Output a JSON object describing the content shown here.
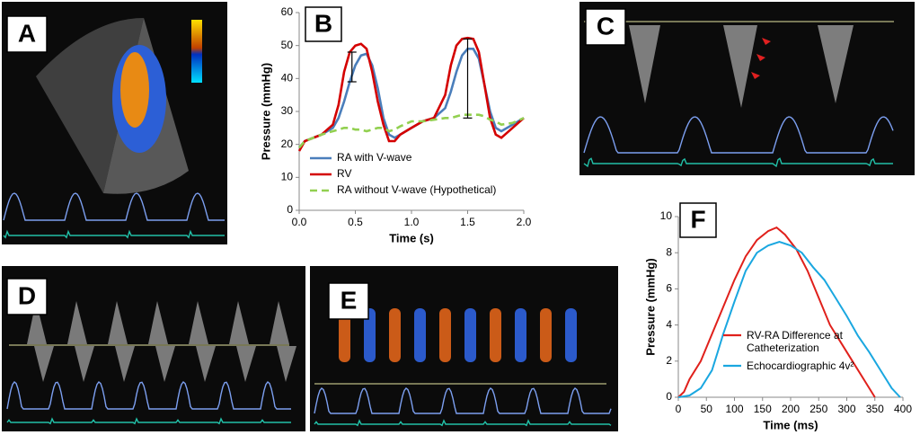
{
  "panel_labels": [
    "A",
    "C",
    "D",
    "E"
  ],
  "chart_data": [
    {
      "type": "line",
      "label": "B",
      "xlabel": "Time (s)",
      "ylabel": "Pressure (mmHg)",
      "x": [
        0,
        0.05,
        0.2,
        0.3,
        0.35,
        0.4,
        0.45,
        0.5,
        0.55,
        0.6,
        0.65,
        0.7,
        0.75,
        0.8,
        0.85,
        0.9,
        1.0,
        1.1,
        1.2,
        1.3,
        1.35,
        1.4,
        1.45,
        1.5,
        1.55,
        1.6,
        1.65,
        1.7,
        1.75,
        1.8,
        1.9,
        2.0
      ],
      "series": [
        {
          "name": "RA with V-wave",
          "color": "#4a7ebb",
          "values": [
            19,
            21,
            23,
            25,
            28,
            33,
            39,
            44,
            47,
            47.5,
            44,
            37,
            28,
            23,
            22,
            23,
            25,
            27,
            28,
            31,
            36,
            42,
            47,
            49,
            49,
            46,
            38,
            30,
            25,
            24,
            26,
            28
          ]
        },
        {
          "name": "RV",
          "color": "#d40000",
          "values": [
            18,
            21,
            23,
            26,
            32,
            42,
            48,
            50,
            50.5,
            49,
            42,
            33,
            26,
            21,
            21,
            23,
            25,
            27,
            28,
            35,
            44,
            50,
            52,
            52.3,
            52,
            48,
            38,
            28,
            23,
            22,
            25,
            28
          ]
        },
        {
          "name": "RA without V-wave (Hypothetical)",
          "color": "#92d050",
          "dashed": true,
          "values": [
            19,
            21,
            23,
            24,
            24.5,
            25,
            25,
            24.5,
            24.5,
            24,
            24.5,
            25,
            25,
            24,
            24.5,
            25.5,
            27,
            27,
            27.5,
            28,
            28,
            28.5,
            29,
            29,
            29,
            29,
            28.5,
            27.5,
            27,
            26,
            26.5,
            28
          ]
        }
      ],
      "brackets": [
        {
          "x": 0.47,
          "ymin": 39,
          "ymax": 48
        },
        {
          "x": 1.5,
          "ymin": 28,
          "ymax": 52
        }
      ],
      "xlim": [
        0,
        2
      ],
      "xticks": [
        {
          "value": 0,
          "label": "0.0"
        },
        {
          "value": 0.5,
          "label": "0.5"
        },
        {
          "value": 1,
          "label": "1.0"
        },
        {
          "value": 1.5,
          "label": "1.5"
        },
        {
          "value": 2,
          "label": "2.0"
        }
      ],
      "ylim": [
        0,
        60
      ],
      "yticks": [
        0,
        10,
        20,
        30,
        40,
        50,
        60
      ],
      "grid": false,
      "legend": "lower right"
    },
    {
      "type": "line",
      "label": "F",
      "xlabel": "Time (ms)",
      "ylabel": "Pressure (mmHg)",
      "series": [
        {
          "name": "RV-RA Difference at Catheterization",
          "color": "#e0201b",
          "x": [
            0,
            10,
            20,
            40,
            60,
            80,
            100,
            120,
            140,
            160,
            175,
            190,
            210,
            230,
            250,
            270,
            290,
            310,
            330,
            350
          ],
          "values": [
            0,
            0.3,
            1,
            2,
            3.5,
            5,
            6.5,
            7.8,
            8.7,
            9.2,
            9.4,
            9,
            8.2,
            7,
            5.5,
            4,
            3,
            2,
            1,
            0
          ]
        },
        {
          "name": "Echocardiographic 4v²",
          "color": "#1aa7e0",
          "x": [
            0,
            20,
            40,
            60,
            70,
            80,
            100,
            120,
            140,
            160,
            180,
            200,
            220,
            240,
            260,
            280,
            300,
            320,
            340,
            360,
            380,
            395
          ],
          "values": [
            0,
            0.1,
            0.5,
            1.5,
            2.5,
            3.5,
            5.3,
            7,
            8,
            8.4,
            8.6,
            8.4,
            8,
            7.2,
            6.5,
            5.5,
            4.5,
            3.4,
            2.5,
            1.5,
            0.5,
            0
          ]
        }
      ],
      "xlim": [
        0,
        400
      ],
      "xticks": [
        0,
        50,
        100,
        150,
        200,
        250,
        300,
        350,
        400
      ],
      "ylim": [
        0,
        10
      ],
      "yticks": [
        0,
        2,
        4,
        6,
        8,
        10
      ],
      "grid": false,
      "legend": "lower right"
    }
  ]
}
